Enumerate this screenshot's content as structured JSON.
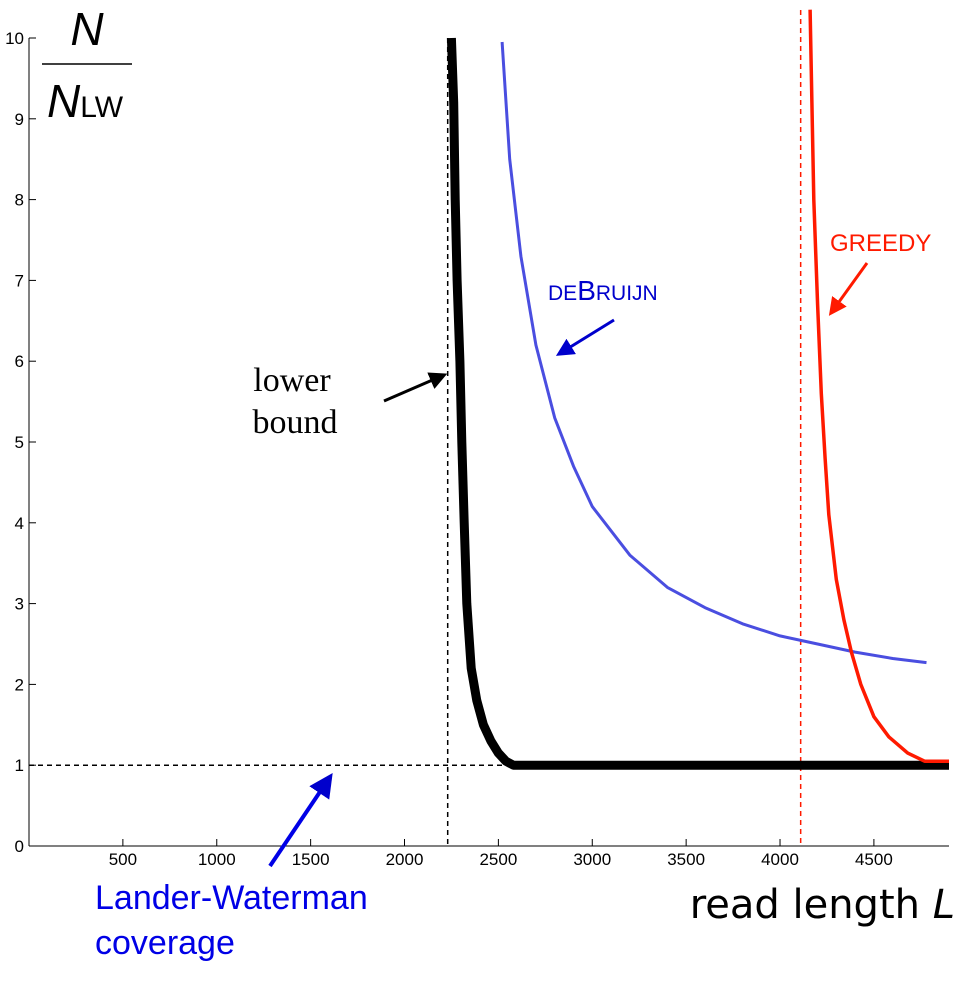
{
  "chart_data": {
    "type": "line",
    "xlabel": "read length",
    "xlabel_var": "L",
    "ylabel_num": "N",
    "ylabel_den": "N",
    "ylabel_den_sub": "LW",
    "xlim": [
      0,
      4900
    ],
    "ylim": [
      0,
      10
    ],
    "xticks": [
      "500",
      "1000",
      "1500",
      "2000",
      "2500",
      "3000",
      "3500",
      "4000",
      "4500"
    ],
    "xtick_values": [
      500,
      1000,
      1500,
      2000,
      2500,
      3000,
      3500,
      4000,
      4500
    ],
    "yticks": [
      "0",
      "1",
      "2",
      "3",
      "4",
      "5",
      "6",
      "7",
      "8",
      "9",
      "10"
    ],
    "ytick_values": [
      0,
      1,
      2,
      3,
      4,
      5,
      6,
      7,
      8,
      9,
      10
    ],
    "grid": false,
    "series": [
      {
        "name": "lower bound",
        "color": "#000000",
        "x": [
          2250,
          2262,
          2270,
          2280,
          2295,
          2305,
          2318,
          2332,
          2355,
          2385,
          2420,
          2460,
          2500,
          2540,
          2580,
          3000,
          3500,
          4000,
          4500,
          4900
        ],
        "y": [
          10,
          9.2,
          8,
          7,
          6,
          5,
          4,
          3,
          2.2,
          1.8,
          1.5,
          1.3,
          1.15,
          1.05,
          1.0,
          1.0,
          1.0,
          1.0,
          1.0,
          1.0
        ]
      },
      {
        "name": "deBruijn",
        "color": "#4a4ee0",
        "x": [
          2520,
          2560,
          2620,
          2700,
          2800,
          2900,
          3000,
          3200,
          3400,
          3600,
          3800,
          4000,
          4200,
          4400,
          4600,
          4780
        ],
        "y": [
          9.95,
          8.5,
          7.3,
          6.2,
          5.3,
          4.7,
          4.2,
          3.6,
          3.2,
          2.95,
          2.75,
          2.6,
          2.5,
          2.4,
          2.32,
          2.27
        ]
      },
      {
        "name": "Greedy",
        "color": "#ff1a00",
        "x": [
          4160,
          4170,
          4180,
          4200,
          4220,
          4240,
          4260,
          4300,
          4340,
          4380,
          4430,
          4500,
          4580,
          4680,
          4770,
          4820,
          4900
        ],
        "y": [
          10.35,
          9.2,
          8,
          6.7,
          5.6,
          4.8,
          4.1,
          3.3,
          2.8,
          2.4,
          2.0,
          1.6,
          1.35,
          1.15,
          1.05,
          1.05,
          1.05
        ]
      }
    ],
    "reference_lines": [
      {
        "orientation": "vertical",
        "x": 2230,
        "color": "#000000",
        "style": "dashed"
      },
      {
        "orientation": "horizontal",
        "y": 1,
        "color": "#000000",
        "style": "dashed"
      },
      {
        "orientation": "vertical",
        "x": 4110,
        "color": "#ff1a00",
        "style": "dashed"
      }
    ],
    "annotations": [
      {
        "id": "lower-bound",
        "lines": [
          "lower",
          "bound"
        ],
        "color": "#000000"
      },
      {
        "id": "debruijn",
        "prefix": "DE",
        "big": "B",
        "suffix": "RUIJN",
        "color": "#0000cc"
      },
      {
        "id": "greedy",
        "text": "GREEDY",
        "color": "#ff1a00"
      },
      {
        "id": "lander-waterman",
        "lines": [
          "Lander-Waterman",
          "coverage"
        ],
        "color": "#0000e6"
      }
    ]
  }
}
